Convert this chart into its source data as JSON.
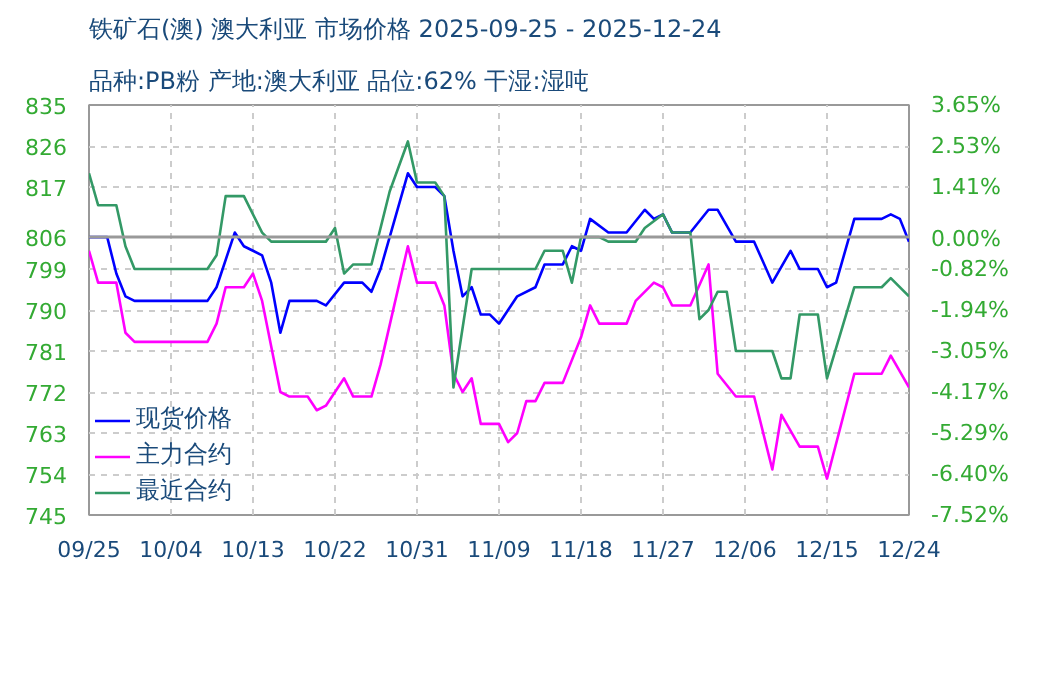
{
  "chart_data": {
    "type": "line",
    "title": "铁矿石(澳) 澳大利亚 市场价格 2025-09-25 - 2025-12-24",
    "subtitle": "品种:PB粉 产地:澳大利亚 品位:62% 干湿:湿吨",
    "xlim": [
      "2025-09-25",
      "2025-12-24"
    ],
    "xticks": [
      {
        "value": "2025-09-25",
        "label": "09/25"
      },
      {
        "value": "2025-10-04",
        "label": "10/04"
      },
      {
        "value": "2025-10-13",
        "label": "10/13"
      },
      {
        "value": "2025-10-22",
        "label": "10/22"
      },
      {
        "value": "2025-10-31",
        "label": "10/31"
      },
      {
        "value": "2025-11-09",
        "label": "11/09"
      },
      {
        "value": "2025-11-18",
        "label": "11/18"
      },
      {
        "value": "2025-11-27",
        "label": "11/27"
      },
      {
        "value": "2025-12-06",
        "label": "12/06"
      },
      {
        "value": "2025-12-15",
        "label": "12/15"
      },
      {
        "value": "2025-12-24",
        "label": "12/24"
      }
    ],
    "ylim": [
      745,
      835
    ],
    "yticks": [
      835,
      826,
      817,
      806,
      799,
      790,
      781,
      772,
      763,
      754,
      745
    ],
    "y2lim": [
      -7.52,
      3.65
    ],
    "y2ticks": [
      {
        "value": 3.65,
        "label": "3.65%"
      },
      {
        "value": 2.53,
        "label": "2.53%"
      },
      {
        "value": 1.41,
        "label": "1.41%"
      },
      {
        "value": 0.0,
        "label": "0.00%"
      },
      {
        "value": -0.82,
        "label": "-0.82%"
      },
      {
        "value": -1.94,
        "label": "-1.94%"
      },
      {
        "value": -3.05,
        "label": "-3.05%"
      },
      {
        "value": -4.17,
        "label": "-4.17%"
      },
      {
        "value": -5.29,
        "label": "-5.29%"
      },
      {
        "value": -6.4,
        "label": "-6.40%"
      },
      {
        "value": -7.52,
        "label": "-7.52%"
      }
    ],
    "ref_lines": [
      {
        "axis": "y",
        "value": 806,
        "color": "#999999"
      }
    ],
    "grid": true,
    "legend": "bottom left",
    "series": [
      {
        "name": "现货价格",
        "color": "#0000ff",
        "x": [
          "2025-09-25",
          "2025-09-27",
          "2025-09-28",
          "2025-09-29",
          "2025-09-30",
          "2025-10-08",
          "2025-10-09",
          "2025-10-11",
          "2025-10-12",
          "2025-10-13",
          "2025-10-14",
          "2025-10-15",
          "2025-10-16",
          "2025-10-17",
          "2025-10-20",
          "2025-10-21",
          "2025-10-23",
          "2025-10-25",
          "2025-10-26",
          "2025-10-27",
          "2025-10-30",
          "2025-10-31",
          "2025-11-02",
          "2025-11-03",
          "2025-11-04",
          "2025-11-05",
          "2025-11-06",
          "2025-11-07",
          "2025-11-08",
          "2025-11-09",
          "2025-11-11",
          "2025-11-13",
          "2025-11-14",
          "2025-11-16",
          "2025-11-17",
          "2025-11-18",
          "2025-11-19",
          "2025-11-21",
          "2025-11-23",
          "2025-11-25",
          "2025-11-26",
          "2025-11-27",
          "2025-11-28",
          "2025-11-30",
          "2025-12-02",
          "2025-12-03",
          "2025-12-05",
          "2025-12-07",
          "2025-12-09",
          "2025-12-11",
          "2025-12-12",
          "2025-12-14",
          "2025-12-15",
          "2025-12-16",
          "2025-12-18",
          "2025-12-21",
          "2025-12-22",
          "2025-12-23",
          "2025-12-24"
        ],
        "values": [
          806,
          806,
          798,
          793,
          792,
          792,
          795,
          807,
          804,
          803,
          802,
          796,
          785,
          792,
          792,
          791,
          796,
          796,
          794,
          799,
          820,
          817,
          817,
          815,
          803,
          793,
          795,
          789,
          789,
          787,
          793,
          795,
          800,
          800,
          804,
          803,
          810,
          807,
          807,
          812,
          810,
          811,
          807,
          807,
          812,
          812,
          805,
          805,
          796,
          803,
          799,
          799,
          795,
          796,
          810,
          810,
          811,
          810,
          805
        ]
      },
      {
        "name": "主力合约",
        "color": "#ff00ff",
        "x": [
          "2025-09-25",
          "2025-09-26",
          "2025-09-28",
          "2025-09-29",
          "2025-09-30",
          "2025-10-08",
          "2025-10-09",
          "2025-10-10",
          "2025-10-12",
          "2025-10-13",
          "2025-10-14",
          "2025-10-16",
          "2025-10-17",
          "2025-10-19",
          "2025-10-20",
          "2025-10-21",
          "2025-10-23",
          "2025-10-24",
          "2025-10-26",
          "2025-10-27",
          "2025-10-30",
          "2025-10-31",
          "2025-11-02",
          "2025-11-03",
          "2025-11-04",
          "2025-11-05",
          "2025-11-06",
          "2025-11-07",
          "2025-11-09",
          "2025-11-10",
          "2025-11-11",
          "2025-11-12",
          "2025-11-13",
          "2025-11-14",
          "2025-11-16",
          "2025-11-18",
          "2025-11-19",
          "2025-11-20",
          "2025-11-23",
          "2025-11-24",
          "2025-11-26",
          "2025-11-27",
          "2025-11-28",
          "2025-11-30",
          "2025-12-02",
          "2025-12-03",
          "2025-12-05",
          "2025-12-07",
          "2025-12-09",
          "2025-12-10",
          "2025-12-12",
          "2025-12-14",
          "2025-12-15",
          "2025-12-18",
          "2025-12-21",
          "2025-12-22",
          "2025-12-24"
        ],
        "values": [
          803,
          796,
          796,
          785,
          783,
          783,
          787,
          795,
          795,
          798,
          792,
          772,
          771,
          771,
          768,
          769,
          775,
          771,
          771,
          778,
          804,
          796,
          796,
          791,
          776,
          772,
          775,
          765,
          765,
          761,
          763,
          770,
          770,
          774,
          774,
          784,
          791,
          787,
          787,
          792,
          796,
          795,
          791,
          791,
          800,
          776,
          771,
          771,
          755,
          767,
          760,
          760,
          753,
          776,
          776,
          780,
          773
        ]
      },
      {
        "name": "最近合约",
        "color": "#339966",
        "x": [
          "2025-09-25",
          "2025-09-26",
          "2025-09-28",
          "2025-09-29",
          "2025-09-30",
          "2025-10-08",
          "2025-10-09",
          "2025-10-10",
          "2025-10-12",
          "2025-10-14",
          "2025-10-15",
          "2025-10-21",
          "2025-10-22",
          "2025-10-23",
          "2025-10-24",
          "2025-10-26",
          "2025-10-28",
          "2025-10-30",
          "2025-10-31",
          "2025-11-02",
          "2025-11-03",
          "2025-11-04",
          "2025-11-06",
          "2025-11-13",
          "2025-11-14",
          "2025-11-16",
          "2025-11-17",
          "2025-11-18",
          "2025-11-20",
          "2025-11-21",
          "2025-11-24",
          "2025-11-25",
          "2025-11-27",
          "2025-11-28",
          "2025-11-30",
          "2025-12-01",
          "2025-12-02",
          "2025-12-03",
          "2025-12-04",
          "2025-12-05",
          "2025-12-09",
          "2025-12-10",
          "2025-12-11",
          "2025-12-12",
          "2025-12-14",
          "2025-12-15",
          "2025-12-18",
          "2025-12-21",
          "2025-12-22",
          "2025-12-24"
        ],
        "values": [
          820,
          813,
          813,
          804,
          799,
          799,
          802,
          815,
          815,
          807,
          805,
          805,
          808,
          798,
          800,
          800,
          816,
          827,
          818,
          818,
          815,
          773,
          799,
          799,
          803,
          803,
          796,
          806,
          806,
          805,
          805,
          808,
          811,
          807,
          807,
          788,
          790,
          794,
          794,
          781,
          781,
          775,
          775,
          789,
          789,
          775,
          795,
          795,
          797,
          793
        ]
      }
    ]
  }
}
